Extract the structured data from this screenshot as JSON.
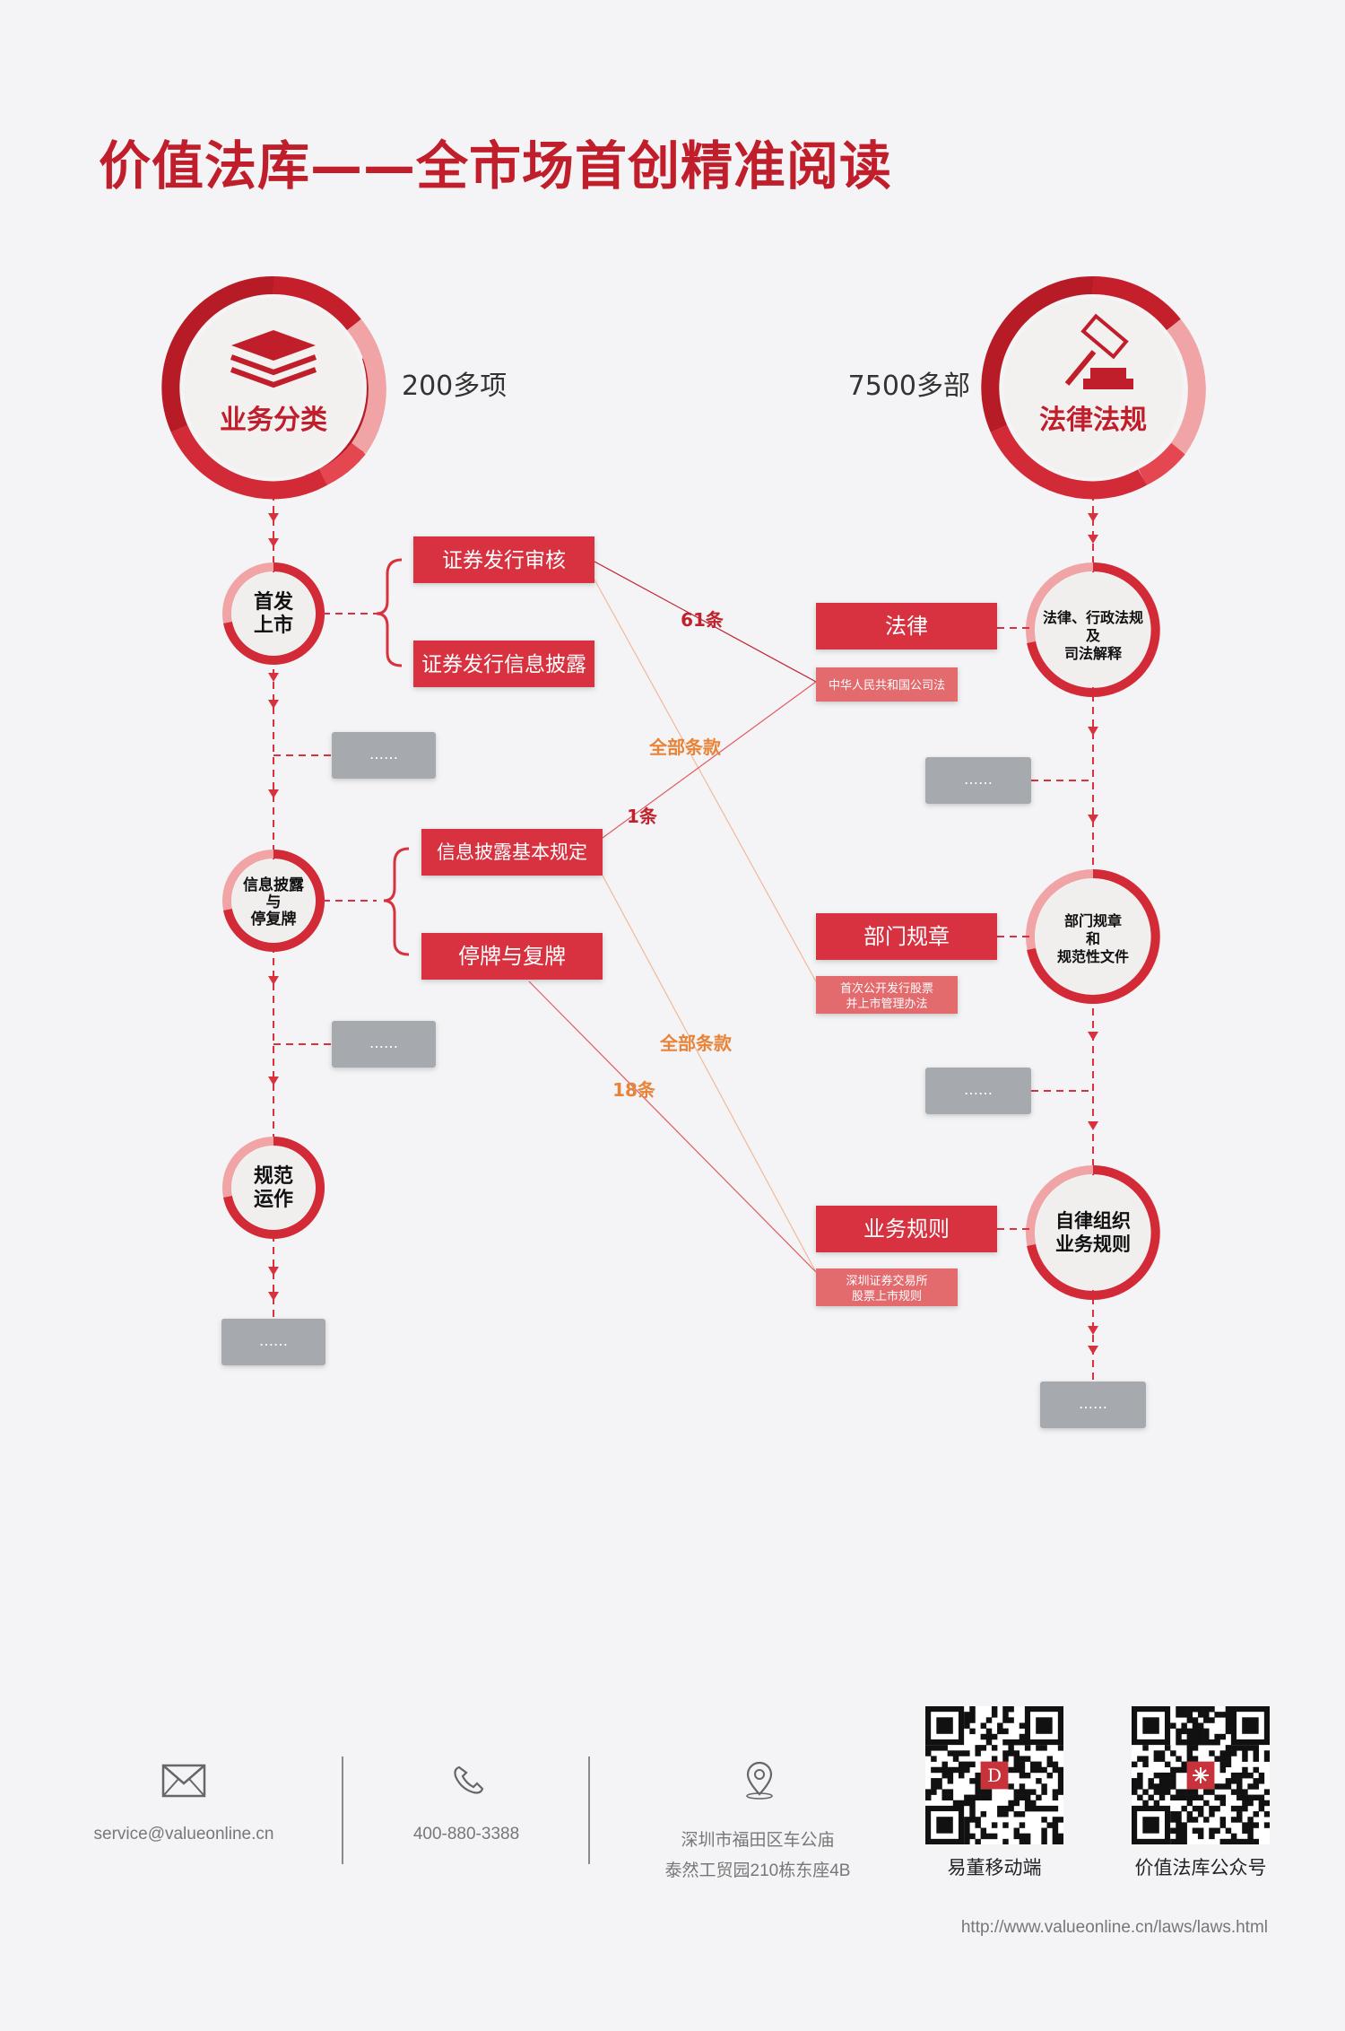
{
  "title": "价值法库——全市场首创精准阅读",
  "left_hub": {
    "label": "业务分类",
    "count": "200多项",
    "icon": "layers-icon"
  },
  "right_hub": {
    "label": "法律法规",
    "count": "7500多部",
    "icon": "gavel-icon"
  },
  "left_nodes": [
    {
      "id": "ipo",
      "lines": [
        "首发",
        "上市"
      ],
      "subs": [
        "证券发行审核",
        "证券发行信息披露"
      ]
    },
    {
      "id": "disclosure",
      "lines": [
        "信息披露",
        "与",
        "停复牌"
      ],
      "subs": [
        "信息披露基本规定",
        "停牌与复牌"
      ]
    },
    {
      "id": "ops",
      "lines": [
        "规范",
        "运作"
      ],
      "subs": []
    }
  ],
  "right_nodes": [
    {
      "id": "law",
      "lines": [
        "法律、行政法规",
        "及",
        "司法解释"
      ],
      "category": "法律",
      "example": [
        "中华人民共和国公司法"
      ]
    },
    {
      "id": "dept",
      "lines": [
        "部门规章",
        "和",
        "规范性文件"
      ],
      "category": "部门规章",
      "example": [
        "首次公开发行股票",
        "并上市管理办法"
      ]
    },
    {
      "id": "selfreg",
      "lines": [
        "自律组织",
        "业务规则"
      ],
      "category": "业务规则",
      "example": [
        "深圳证券交易所",
        "股票上市规则"
      ]
    }
  ],
  "ellipsis": "……",
  "link_labels": [
    "61条",
    "全部条款",
    "1条",
    "全部条款",
    "18条"
  ],
  "footer": {
    "email": "service@valueonline.cn",
    "phone": "400-880-3388",
    "address": [
      "深圳市福田区车公庙",
      "泰然工贸园210栋东座4B"
    ],
    "qr": [
      {
        "label": "易董移动端",
        "center": "D"
      },
      {
        "label": "价值法库公众号",
        "center": ""
      }
    ],
    "url": "http://www.valueonline.cn/laws/laws.html"
  },
  "colors": {
    "accent": "#d8323f",
    "dark_red": "#b71c26",
    "pink": "#f0a4a6",
    "gray_box": "#a6a9ae",
    "link_red": "#c0222d",
    "link_orange": "#e8843a"
  }
}
